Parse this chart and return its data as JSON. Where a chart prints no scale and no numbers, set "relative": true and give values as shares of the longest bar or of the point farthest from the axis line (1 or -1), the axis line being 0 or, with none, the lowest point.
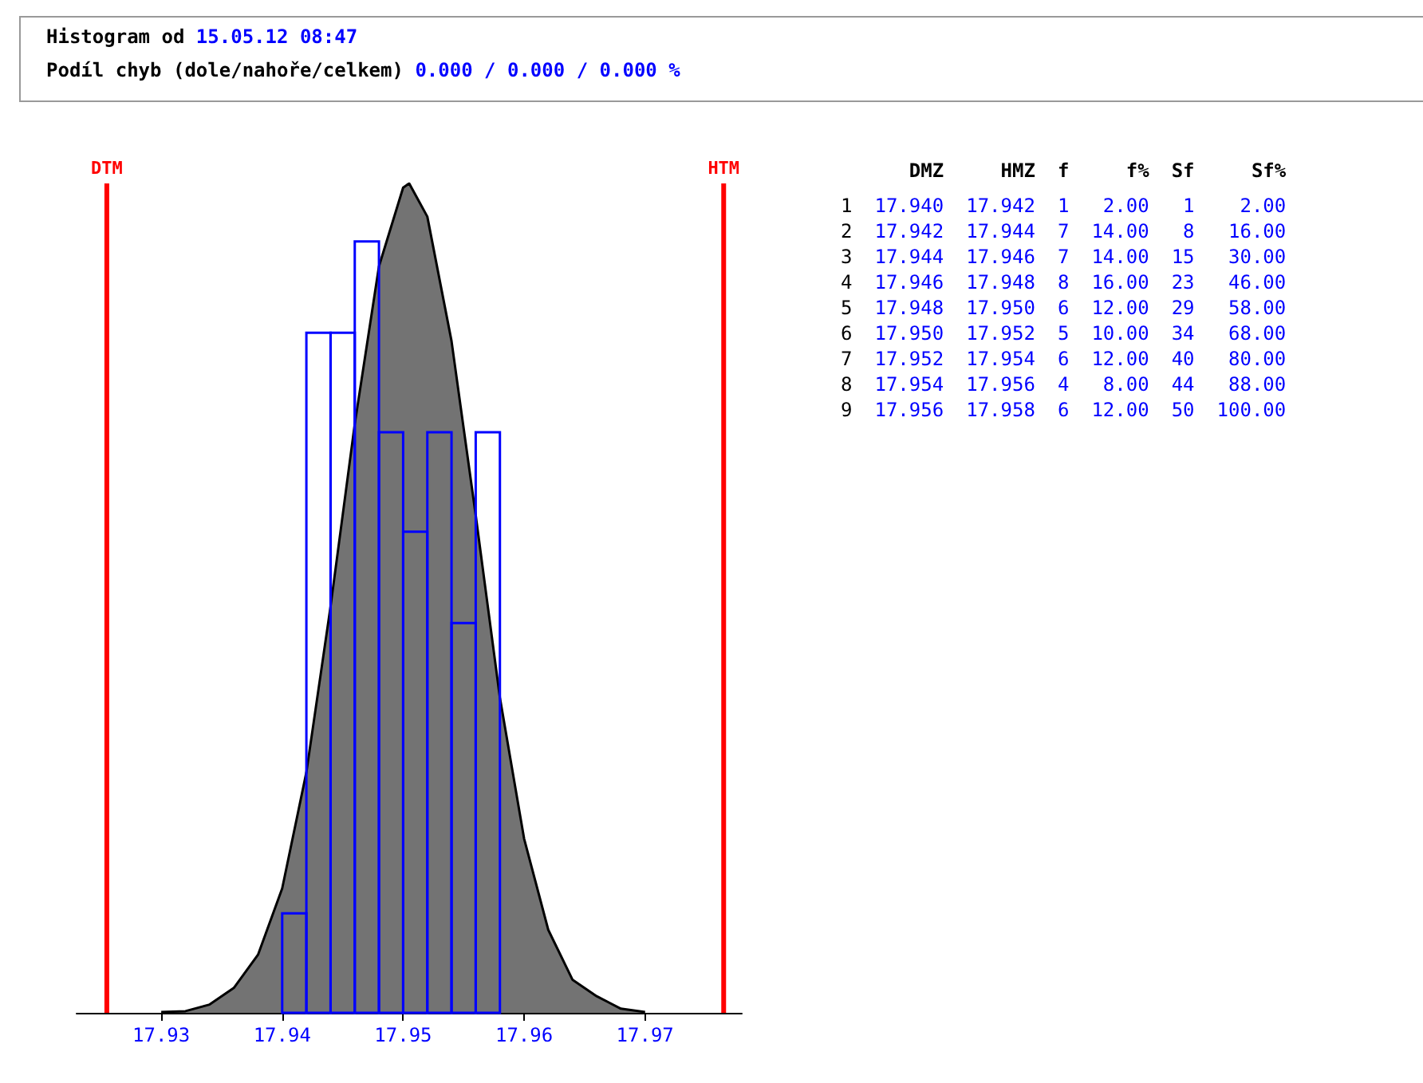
{
  "chart_data": {
    "type": "histogram",
    "title": "Histogram od 15.05.12 08:47",
    "subtitle": "Podíl chyb (dole/nahoře/celkem)    0.000 / 0.000 / 0.000 %",
    "bins": [
      17.94,
      17.942,
      17.944,
      17.946,
      17.948,
      17.95,
      17.952,
      17.954,
      17.956,
      17.958
    ],
    "values": [
      0.12,
      0.82,
      0.82,
      0.93,
      0.7,
      0.58,
      0.7,
      0.47,
      0.7
    ],
    "relative": true,
    "color": "#0000ff",
    "series": [
      {
        "type": "line",
        "color": "#000000",
        "x": [
          17.93,
          17.932,
          17.934,
          17.936,
          17.938,
          17.94,
          17.942,
          17.944,
          17.946,
          17.948,
          17.95,
          17.9505,
          17.952,
          17.954,
          17.956,
          17.958,
          17.96,
          17.962,
          17.964,
          17.966,
          17.968,
          17.97
        ],
        "values": [
          0.001,
          0.002,
          0.01,
          0.03,
          0.07,
          0.15,
          0.29,
          0.49,
          0.71,
          0.9,
          0.995,
          1,
          0.96,
          0.81,
          0.6,
          0.38,
          0.21,
          0.1,
          0.04,
          0.02,
          0.005,
          0.001
        ]
      }
    ],
    "xlim": [
      17.923,
      17.978
    ],
    "xticks": [
      17.93,
      17.94,
      17.95,
      17.96,
      17.97
    ],
    "ref_lines": [
      {
        "axis": "x",
        "value": 17.9255,
        "label": "DTM",
        "color": "#ff0000"
      },
      {
        "axis": "x",
        "value": 17.9765,
        "label": "HTM",
        "color": "#ff0000"
      }
    ],
    "annotations": [
      "DMZ HMZ f f% Sf Sf%",
      "1 17.940 17.942 1 2.00 1 2.00",
      "2 17.942 17.944 7 14.00 8 16.00",
      "3 17.944 17.946 7 14.00 15 30.00",
      "4 17.946 17.948 8 16.00 23 46.00",
      "5 17.948 17.950 6 12.00 29 58.00",
      "6 17.950 17.952 5 10.00 34 68.00",
      "7 17.952 17.954 6 12.00 40 80.00",
      "8 17.954 17.956 4 8.00 44 88.00",
      "9 17.956 17.958 6 12.00 50 100.00"
    ],
    "tick_labels": "x",
    "grid": false
  }
}
